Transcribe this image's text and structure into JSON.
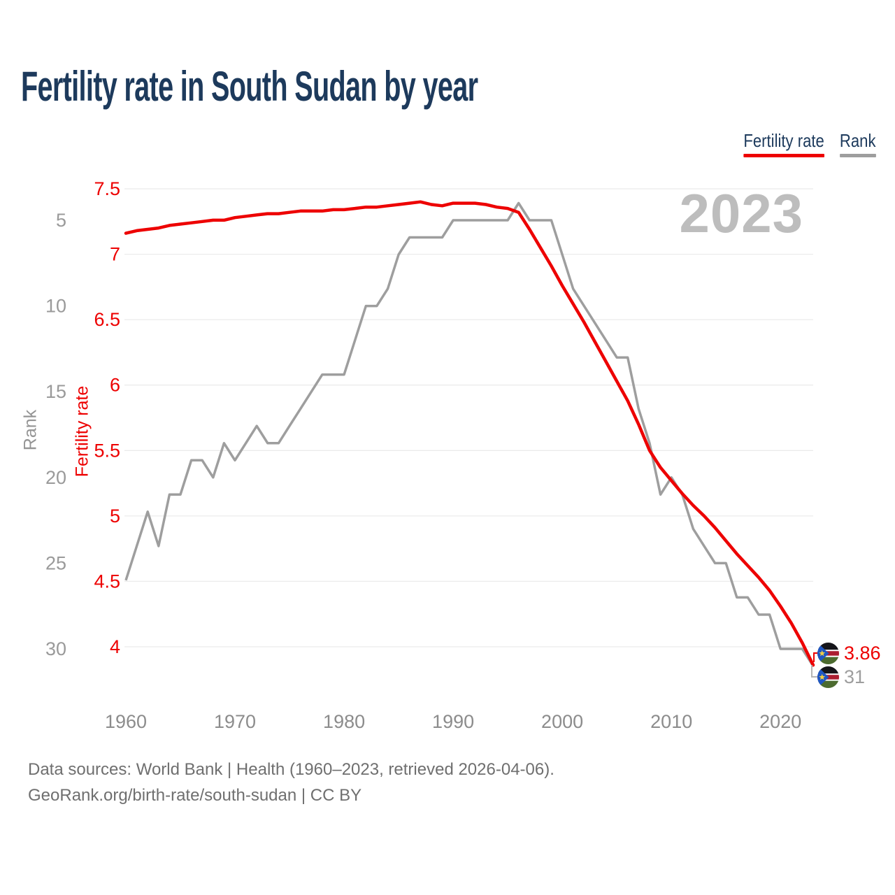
{
  "header": {
    "title": "Fertility rate in South Sudan by year"
  },
  "legend": {
    "items": [
      {
        "label": "Fertility rate",
        "color": "#ed0000"
      },
      {
        "label": "Rank",
        "color": "#9e9e9e"
      }
    ]
  },
  "watermark": "2023",
  "footer": {
    "line1": "Data sources: World Bank | Health (1960–2023, retrieved 2026-04-06).",
    "line2": "GeoRank.org/birth-rate/south-sudan | CC BY"
  },
  "chart_data": {
    "type": "line",
    "title": "Fertility rate in South Sudan by year",
    "grid": "horizontal",
    "legend_position": "top-right",
    "watermark": "2023",
    "x": [
      1960,
      1961,
      1962,
      1963,
      1964,
      1965,
      1966,
      1967,
      1968,
      1969,
      1970,
      1971,
      1972,
      1973,
      1974,
      1975,
      1976,
      1977,
      1978,
      1979,
      1980,
      1981,
      1982,
      1983,
      1984,
      1985,
      1986,
      1987,
      1988,
      1989,
      1990,
      1991,
      1992,
      1993,
      1994,
      1995,
      1996,
      1997,
      1998,
      1999,
      2000,
      2001,
      2002,
      2003,
      2004,
      2005,
      2006,
      2007,
      2008,
      2009,
      2010,
      2011,
      2012,
      2013,
      2014,
      2015,
      2016,
      2017,
      2018,
      2019,
      2020,
      2021,
      2022,
      2023
    ],
    "series": [
      {
        "name": "Fertility rate",
        "axis": "fertility",
        "color": "#ed0000",
        "values": [
          7.16,
          7.18,
          7.19,
          7.2,
          7.22,
          7.23,
          7.24,
          7.25,
          7.26,
          7.26,
          7.28,
          7.29,
          7.3,
          7.31,
          7.31,
          7.32,
          7.33,
          7.33,
          7.33,
          7.34,
          7.34,
          7.35,
          7.36,
          7.36,
          7.37,
          7.38,
          7.39,
          7.4,
          7.38,
          7.37,
          7.39,
          7.39,
          7.39,
          7.38,
          7.36,
          7.35,
          7.32,
          7.19,
          7.05,
          6.91,
          6.76,
          6.62,
          6.48,
          6.33,
          6.18,
          6.03,
          5.88,
          5.7,
          5.5,
          5.37,
          5.27,
          5.17,
          5.08,
          5.0,
          4.91,
          4.81,
          4.71,
          4.62,
          4.53,
          4.43,
          4.31,
          4.18,
          4.03,
          3.86
        ]
      },
      {
        "name": "Rank",
        "axis": "rank",
        "color": "#9e9e9e",
        "values": [
          26,
          24,
          22,
          24,
          21,
          21,
          19,
          19,
          20,
          18,
          19,
          18,
          17,
          18,
          18,
          17,
          16,
          15,
          14,
          14,
          14,
          12,
          10,
          10,
          9,
          7,
          6,
          6,
          6,
          6,
          5,
          5,
          5,
          5,
          5,
          5,
          4,
          5,
          5,
          5,
          7,
          9,
          10,
          11,
          12,
          13,
          13,
          16,
          18,
          21,
          20,
          21,
          23,
          24,
          25,
          25,
          27,
          27,
          28,
          28,
          30,
          30,
          30,
          31
        ]
      }
    ],
    "fertility_axis": {
      "label": "Fertility rate",
      "ticks": [
        7.5,
        7,
        6.5,
        6,
        5.5,
        5,
        4.5,
        4
      ],
      "range": [
        4,
        7.5
      ]
    },
    "rank_axis": {
      "label": "Rank",
      "ticks": [
        5,
        10,
        15,
        20,
        25,
        30
      ],
      "range": [
        4,
        31
      ],
      "inverted": true
    },
    "x_axis": {
      "ticks": [
        1960,
        1970,
        1980,
        1990,
        2000,
        2010,
        2020
      ],
      "range": [
        1960,
        2023
      ]
    },
    "end_labels": {
      "fertility": "3.86",
      "rank": "31"
    }
  }
}
